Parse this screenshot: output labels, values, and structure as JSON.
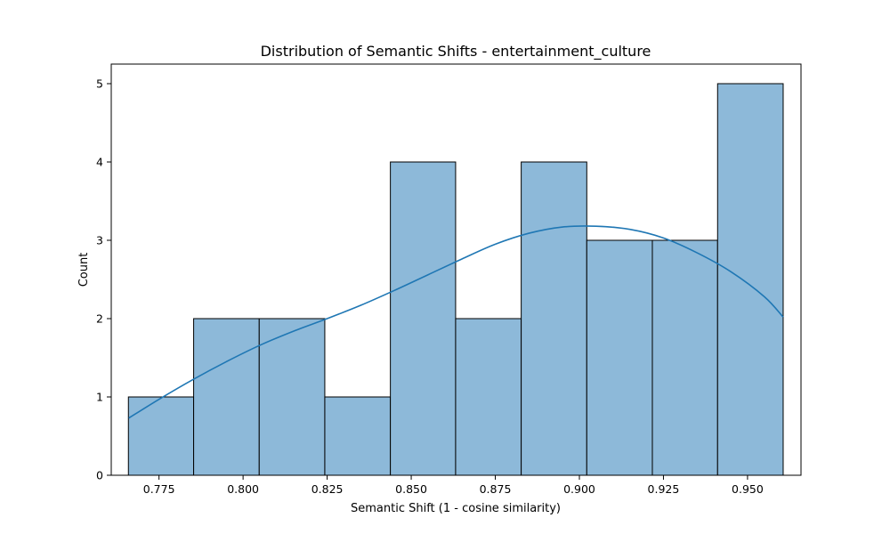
{
  "chart_data": {
    "type": "bar",
    "title": "Distribution of Semantic Shifts - entertainment_culture",
    "xlabel": "Semantic Shift (1 - cosine similarity)",
    "ylabel": "Count",
    "xlim": [
      0.7608,
      0.9659
    ],
    "ylim": [
      0,
      5.25
    ],
    "x_ticks": [
      0.775,
      0.8,
      0.825,
      0.85,
      0.875,
      0.9,
      0.925,
      0.95
    ],
    "x_tick_labels": [
      "0.775",
      "0.800",
      "0.825",
      "0.850",
      "0.875",
      "0.900",
      "0.925",
      "0.950"
    ],
    "y_ticks": [
      0,
      1,
      2,
      3,
      4,
      5
    ],
    "y_tick_labels": [
      "0",
      "1",
      "2",
      "3",
      "4",
      "5"
    ],
    "bins": [
      {
        "x0": 0.7659,
        "x1": 0.7853,
        "count": 1
      },
      {
        "x0": 0.7853,
        "x1": 0.8048,
        "count": 2
      },
      {
        "x0": 0.8048,
        "x1": 0.8243,
        "count": 2
      },
      {
        "x0": 0.8243,
        "x1": 0.8438,
        "count": 1
      },
      {
        "x0": 0.8438,
        "x1": 0.8632,
        "count": 4
      },
      {
        "x0": 0.8632,
        "x1": 0.8827,
        "count": 2
      },
      {
        "x0": 0.8827,
        "x1": 0.9022,
        "count": 4
      },
      {
        "x0": 0.9022,
        "x1": 0.9217,
        "count": 3
      },
      {
        "x0": 0.9217,
        "x1": 0.9411,
        "count": 3
      },
      {
        "x0": 0.9411,
        "x1": 0.9606,
        "count": 5
      }
    ],
    "kde": {
      "x": [
        0.766,
        0.775,
        0.785,
        0.795,
        0.805,
        0.815,
        0.825,
        0.835,
        0.845,
        0.855,
        0.865,
        0.875,
        0.885,
        0.895,
        0.905,
        0.915,
        0.925,
        0.935,
        0.945,
        0.955,
        0.9606
      ],
      "y": [
        0.73,
        0.97,
        1.22,
        1.45,
        1.66,
        1.84,
        2.0,
        2.17,
        2.36,
        2.56,
        2.76,
        2.95,
        3.09,
        3.17,
        3.18,
        3.14,
        3.03,
        2.84,
        2.6,
        2.28,
        2.02
      ]
    },
    "colors": {
      "bar_fill": "#8db9d9",
      "bar_edge": "#000000",
      "kde_line": "#1f77b4"
    },
    "grid": false,
    "legend": "none"
  }
}
